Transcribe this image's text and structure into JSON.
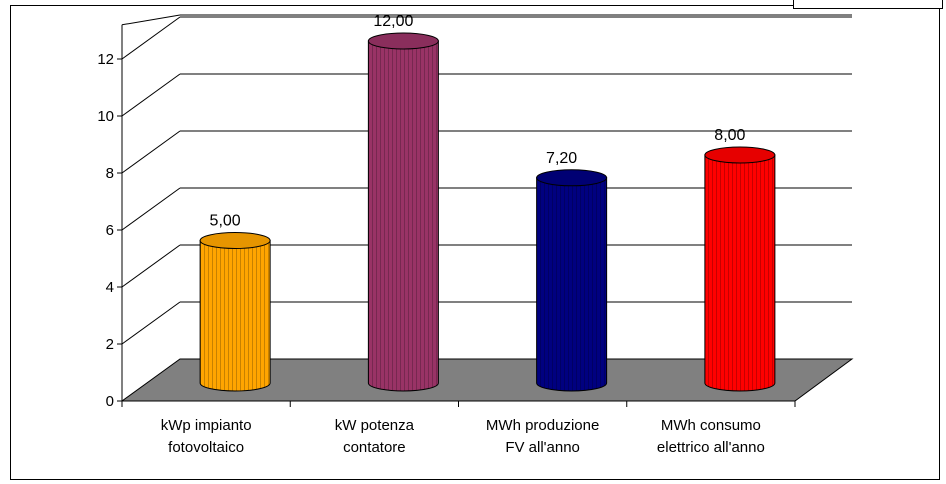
{
  "chart_data": {
    "type": "bar",
    "categories": [
      [
        "kWp impianto",
        "fotovoltaico"
      ],
      [
        "kW potenza",
        "contatore"
      ],
      [
        "MWh produzione",
        "FV all'anno"
      ],
      [
        "MWh consumo",
        "elettrico all'anno"
      ]
    ],
    "values": [
      5,
      12,
      7.2,
      8
    ],
    "data_labels": [
      "5,00",
      "12,00",
      "7,20",
      "8,00"
    ],
    "colors": [
      "#ffa500",
      "#993366",
      "#000080",
      "#ff0000"
    ],
    "yticks": [
      "0",
      "2",
      "4",
      "6",
      "8",
      "10",
      "12"
    ],
    "ylim": [
      0,
      12
    ],
    "grid": true,
    "legend": "none",
    "title": "",
    "xlabel": "",
    "ylabel": "",
    "floor_color": "#808080"
  }
}
